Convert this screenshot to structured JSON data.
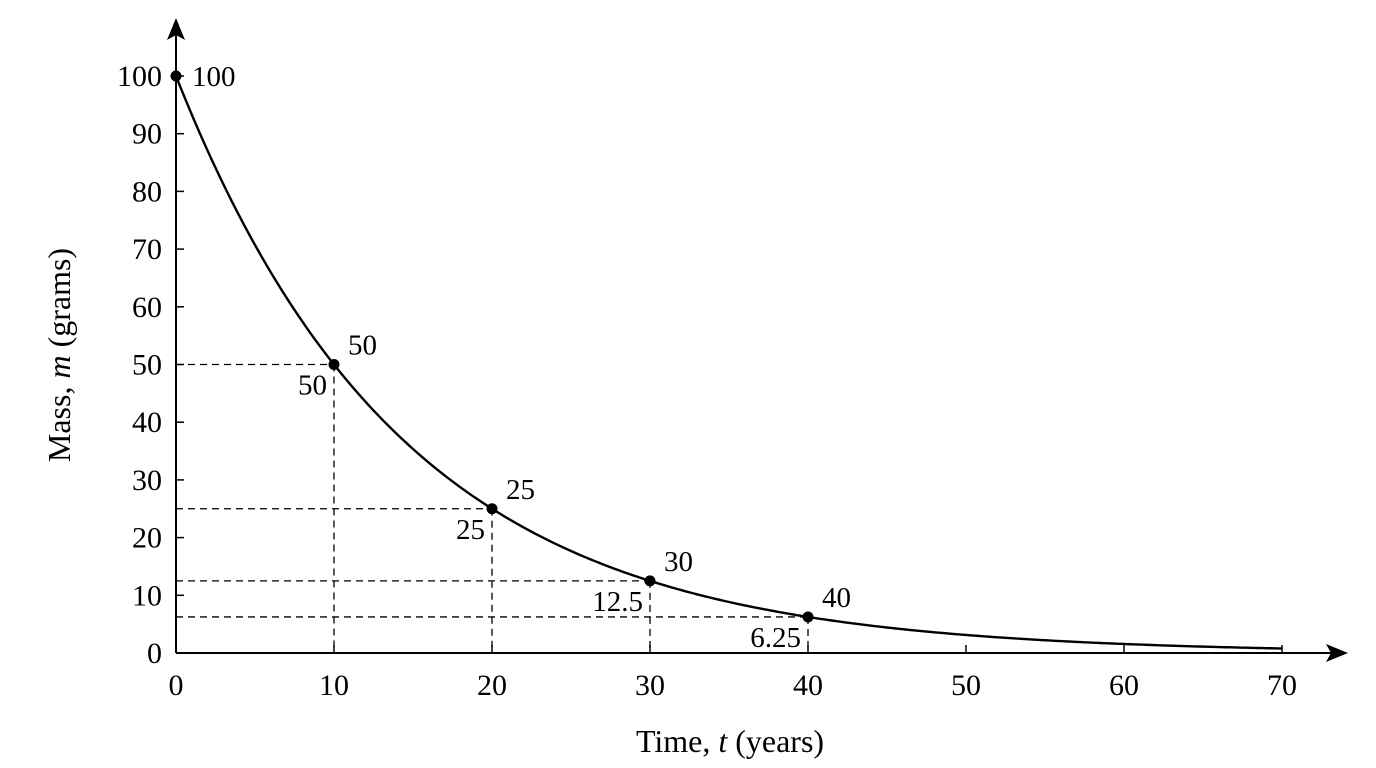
{
  "chart_data": {
    "type": "line",
    "xlabel": {
      "prefix": "Time, ",
      "var": "t",
      "suffix": " (years)"
    },
    "ylabel": {
      "prefix": "Mass, ",
      "var": "m",
      "suffix": " (grams)"
    },
    "xlim": [
      0,
      70
    ],
    "ylim": [
      0,
      100
    ],
    "x_ticks": [
      0,
      10,
      20,
      30,
      40,
      50,
      60,
      70
    ],
    "y_ticks": [
      0,
      10,
      20,
      30,
      40,
      50,
      60,
      70,
      80,
      90,
      100
    ],
    "grid": false,
    "curve": {
      "function": "m = 100 * (1/2)^(t/10)",
      "x_start": 0,
      "x_end": 70
    },
    "points": [
      {
        "x": 0,
        "y": 100,
        "label": "100"
      },
      {
        "x": 10,
        "y": 50,
        "label": "50"
      },
      {
        "x": 20,
        "y": 25,
        "label": "25"
      },
      {
        "x": 30,
        "y": 12.5,
        "label": "30"
      },
      {
        "x": 40,
        "y": 6.25,
        "label": "40"
      }
    ],
    "guide_lines": [
      {
        "x": 10,
        "y": 50,
        "y_label": "50"
      },
      {
        "x": 20,
        "y": 25,
        "y_label": "25"
      },
      {
        "x": 30,
        "y": 12.5,
        "y_label": "12.5"
      },
      {
        "x": 40,
        "y": 6.25,
        "y_label": "6.25"
      }
    ]
  }
}
